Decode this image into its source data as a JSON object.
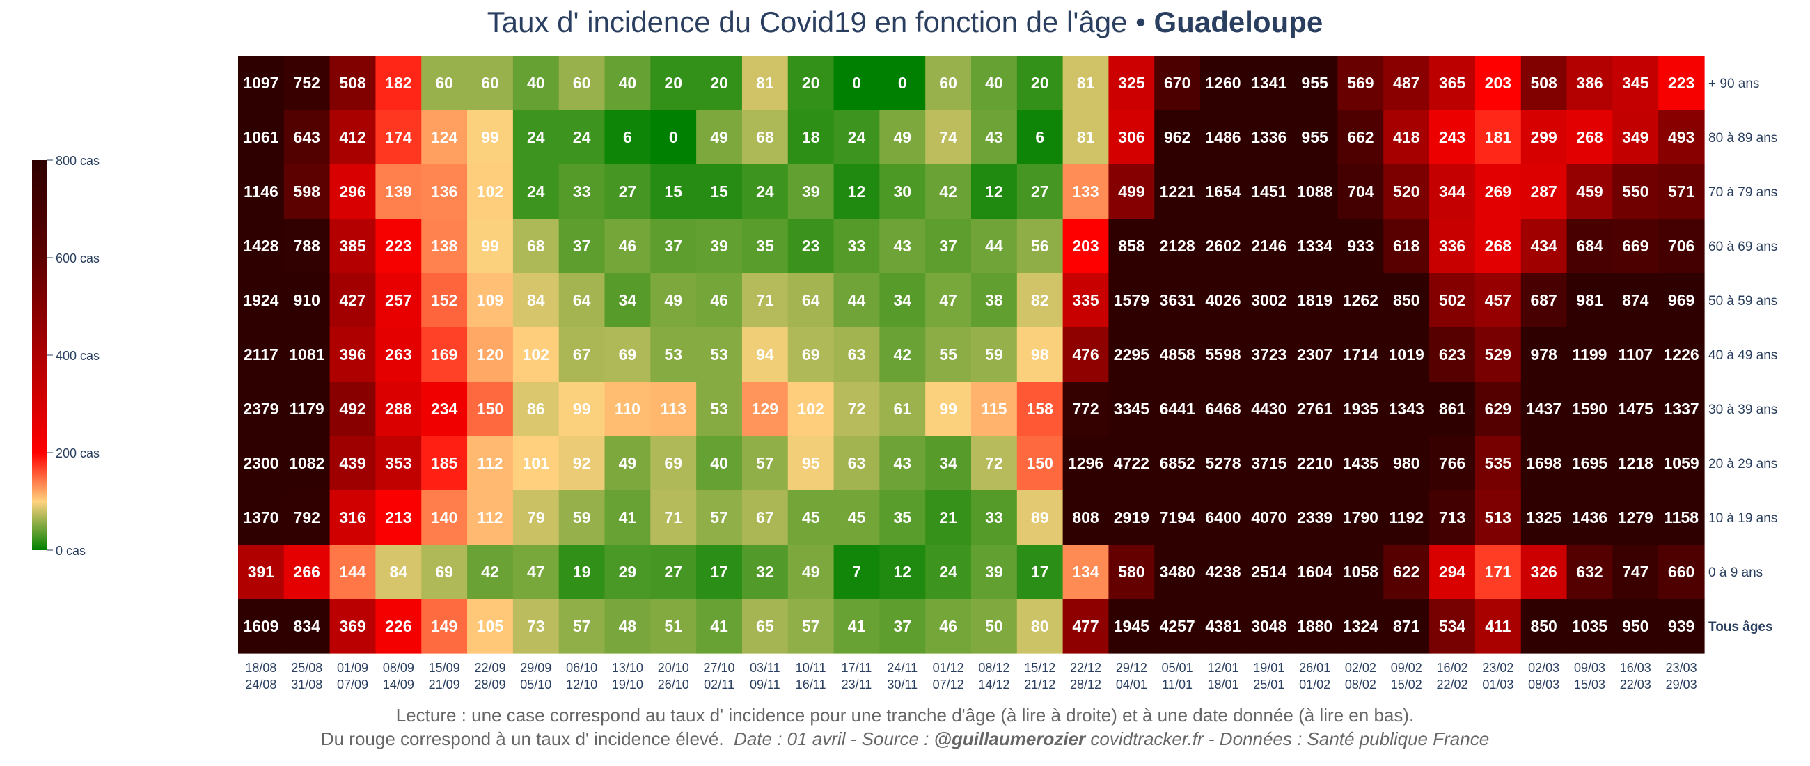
{
  "title": {
    "main": "Taux d' incidence du Covid19 en fonction de l'âge",
    "separator": "•",
    "region": "Guadeloupe"
  },
  "footer": {
    "line1": "Lecture : une case correspond au taux d' incidence pour une tranche d'âge (à lire à droite) et à une date donnée (à lire en bas).",
    "line2_text": "Du rouge correspond à un taux d' incidence élevé.",
    "line2_italic": "Date : 01 avril - Source :",
    "line2_handle": "@guillaumerozier",
    "line2_rest": "covidtracker.fr - Données : Santé publique France"
  },
  "colors": {
    "low": "#008000",
    "mid_low": "#ffd27f",
    "mid": "#ff0000",
    "high": "#5c0000",
    "max": "#2e0000"
  },
  "chart_data": {
    "type": "heatmap",
    "columns": [
      [
        "18/08",
        "24/08"
      ],
      [
        "25/08",
        "31/08"
      ],
      [
        "01/09",
        "07/09"
      ],
      [
        "08/09",
        "14/09"
      ],
      [
        "15/09",
        "21/09"
      ],
      [
        "22/09",
        "28/09"
      ],
      [
        "29/09",
        "05/10"
      ],
      [
        "06/10",
        "12/10"
      ],
      [
        "13/10",
        "19/10"
      ],
      [
        "20/10",
        "26/10"
      ],
      [
        "27/10",
        "02/11"
      ],
      [
        "03/11",
        "09/11"
      ],
      [
        "10/11",
        "16/11"
      ],
      [
        "17/11",
        "23/11"
      ],
      [
        "24/11",
        "30/11"
      ],
      [
        "01/12",
        "07/12"
      ],
      [
        "08/12",
        "14/12"
      ],
      [
        "15/12",
        "21/12"
      ],
      [
        "22/12",
        "28/12"
      ],
      [
        "29/12",
        "04/01"
      ],
      [
        "05/01",
        "11/01"
      ],
      [
        "12/01",
        "18/01"
      ],
      [
        "19/01",
        "25/01"
      ],
      [
        "26/01",
        "01/02"
      ],
      [
        "02/02",
        "08/02"
      ],
      [
        "09/02",
        "15/02"
      ],
      [
        "16/02",
        "22/02"
      ],
      [
        "23/02",
        "01/03"
      ],
      [
        "02/03",
        "08/03"
      ],
      [
        "09/03",
        "15/03"
      ],
      [
        "16/03",
        "22/03"
      ],
      [
        "23/03",
        "29/03"
      ]
    ],
    "rows": [
      {
        "label": "+ 90 ans",
        "values": [
          1097,
          752,
          508,
          182,
          60,
          60,
          40,
          60,
          40,
          20,
          20,
          81,
          20,
          0,
          0,
          60,
          40,
          20,
          81,
          325,
          670,
          1260,
          1341,
          955,
          569,
          487,
          365,
          203,
          508,
          386,
          345,
          223
        ]
      },
      {
        "label": "80 à 89 ans",
        "values": [
          1061,
          643,
          412,
          174,
          124,
          99,
          24,
          24,
          6,
          0,
          49,
          68,
          18,
          24,
          49,
          74,
          43,
          6,
          81,
          306,
          962,
          1486,
          1336,
          955,
          662,
          418,
          243,
          181,
          299,
          268,
          349,
          493
        ]
      },
      {
        "label": "70 à 79 ans",
        "values": [
          1146,
          598,
          296,
          139,
          136,
          102,
          24,
          33,
          27,
          15,
          15,
          24,
          39,
          12,
          30,
          42,
          12,
          27,
          133,
          499,
          1221,
          1654,
          1451,
          1088,
          704,
          520,
          344,
          269,
          287,
          459,
          550,
          571
        ]
      },
      {
        "label": "60 à 69 ans",
        "values": [
          1428,
          788,
          385,
          223,
          138,
          99,
          68,
          37,
          46,
          37,
          39,
          35,
          23,
          33,
          43,
          37,
          44,
          56,
          203,
          858,
          2128,
          2602,
          2146,
          1334,
          933,
          618,
          336,
          268,
          434,
          684,
          669,
          706
        ]
      },
      {
        "label": "50 à 59 ans",
        "values": [
          1924,
          910,
          427,
          257,
          152,
          109,
          84,
          64,
          34,
          49,
          46,
          71,
          64,
          44,
          34,
          47,
          38,
          82,
          335,
          1579,
          3631,
          4026,
          3002,
          1819,
          1262,
          850,
          502,
          457,
          687,
          981,
          874,
          969
        ]
      },
      {
        "label": "40 à 49 ans",
        "values": [
          2117,
          1081,
          396,
          263,
          169,
          120,
          102,
          67,
          69,
          53,
          53,
          94,
          69,
          63,
          42,
          55,
          59,
          98,
          476,
          2295,
          4858,
          5598,
          3723,
          2307,
          1714,
          1019,
          623,
          529,
          978,
          1199,
          1107,
          1226
        ]
      },
      {
        "label": "30 à 39 ans",
        "values": [
          2379,
          1179,
          492,
          288,
          234,
          150,
          86,
          99,
          110,
          113,
          53,
          129,
          102,
          72,
          61,
          99,
          115,
          158,
          772,
          3345,
          6441,
          6468,
          4430,
          2761,
          1935,
          1343,
          861,
          629,
          1437,
          1590,
          1475,
          1337
        ]
      },
      {
        "label": "20 à 29 ans",
        "values": [
          2300,
          1082,
          439,
          353,
          185,
          112,
          101,
          92,
          49,
          69,
          40,
          57,
          95,
          63,
          43,
          34,
          72,
          150,
          1296,
          4722,
          6852,
          5278,
          3715,
          2210,
          1435,
          980,
          766,
          535,
          1698,
          1695,
          1218,
          1059
        ]
      },
      {
        "label": "10 à 19 ans",
        "values": [
          1370,
          792,
          316,
          213,
          140,
          112,
          79,
          59,
          41,
          71,
          57,
          67,
          45,
          45,
          35,
          21,
          33,
          89,
          808,
          2919,
          7194,
          6400,
          4070,
          2339,
          1790,
          1192,
          713,
          513,
          1325,
          1436,
          1279,
          1158
        ]
      },
      {
        "label": "0 à 9 ans",
        "values": [
          391,
          266,
          144,
          84,
          69,
          42,
          47,
          19,
          29,
          27,
          17,
          32,
          49,
          7,
          12,
          24,
          39,
          17,
          134,
          580,
          3480,
          4238,
          2514,
          1604,
          1058,
          622,
          294,
          171,
          326,
          632,
          747,
          660
        ]
      },
      {
        "label": "Tous âges",
        "bold": true,
        "values": [
          1609,
          834,
          369,
          226,
          149,
          105,
          73,
          57,
          48,
          51,
          41,
          65,
          57,
          41,
          37,
          46,
          50,
          80,
          477,
          1945,
          4257,
          4381,
          3048,
          1880,
          1324,
          871,
          534,
          411,
          850,
          1035,
          950,
          939
        ]
      }
    ],
    "colorbar": {
      "range": [
        0,
        800
      ],
      "ticks": [
        "0 cas",
        "200 cas",
        "400 cas",
        "600 cas",
        "800 cas"
      ]
    }
  }
}
